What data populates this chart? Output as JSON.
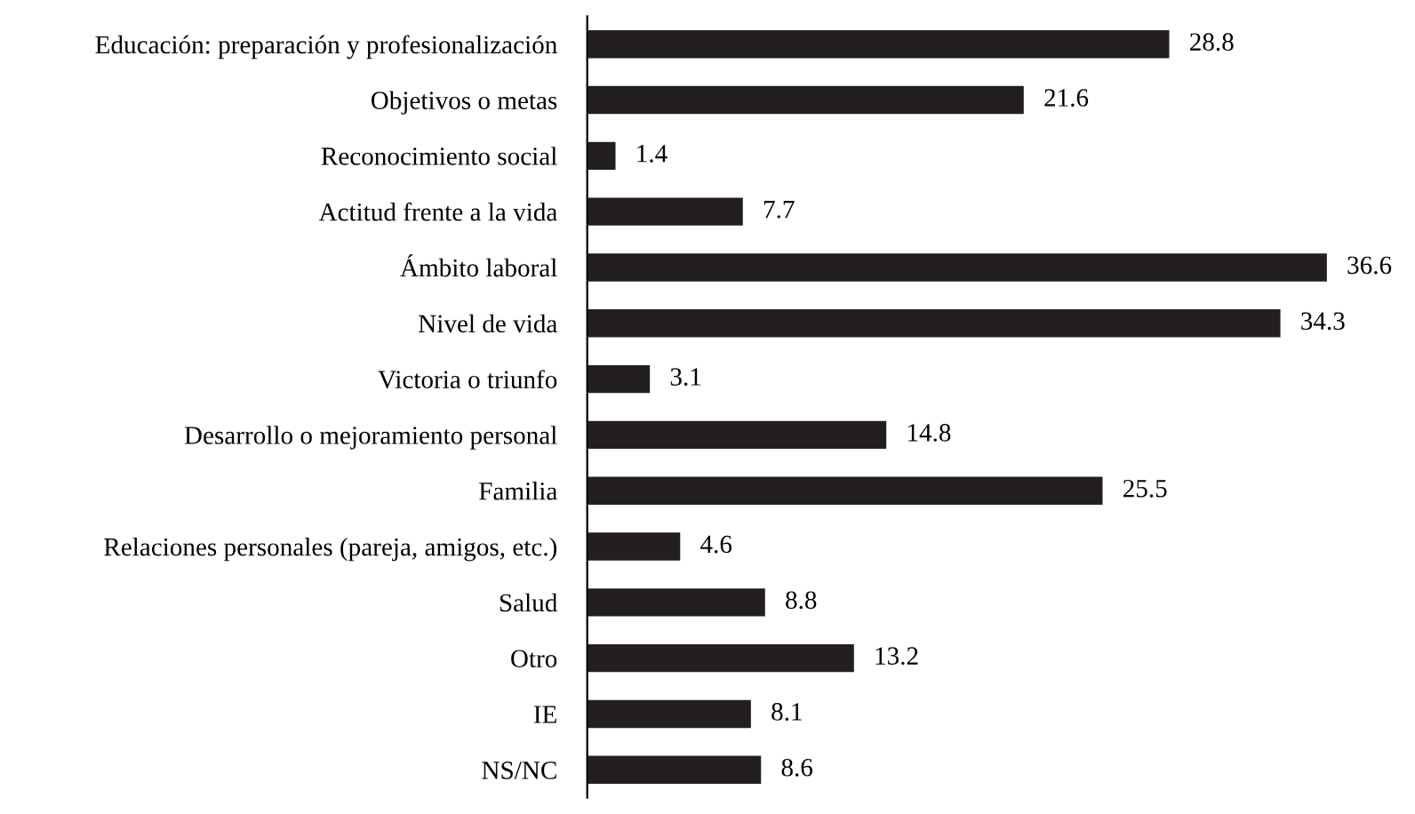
{
  "chart_data": {
    "type": "bar",
    "orientation": "horizontal",
    "relative": false,
    "data_labels": true,
    "grid": false,
    "legend": false,
    "color": "#231f20",
    "categories": [
      "Educación: preparación y profesionalización",
      "Objetivos o metas",
      "Reconocimiento social",
      "Actitud frente a la vida",
      "Ámbito laboral",
      "Nivel de vida",
      "Victoria o triunfo",
      "Desarrollo o mejoramiento personal",
      "Familia",
      "Relaciones personales (pareja, amigos, etc.)",
      "Salud",
      "Otro",
      "IE",
      "NS/NC"
    ],
    "values": [
      28.8,
      21.6,
      1.4,
      7.7,
      36.6,
      34.3,
      3.1,
      14.8,
      25.5,
      4.6,
      8.8,
      13.2,
      8.1,
      8.6
    ]
  }
}
